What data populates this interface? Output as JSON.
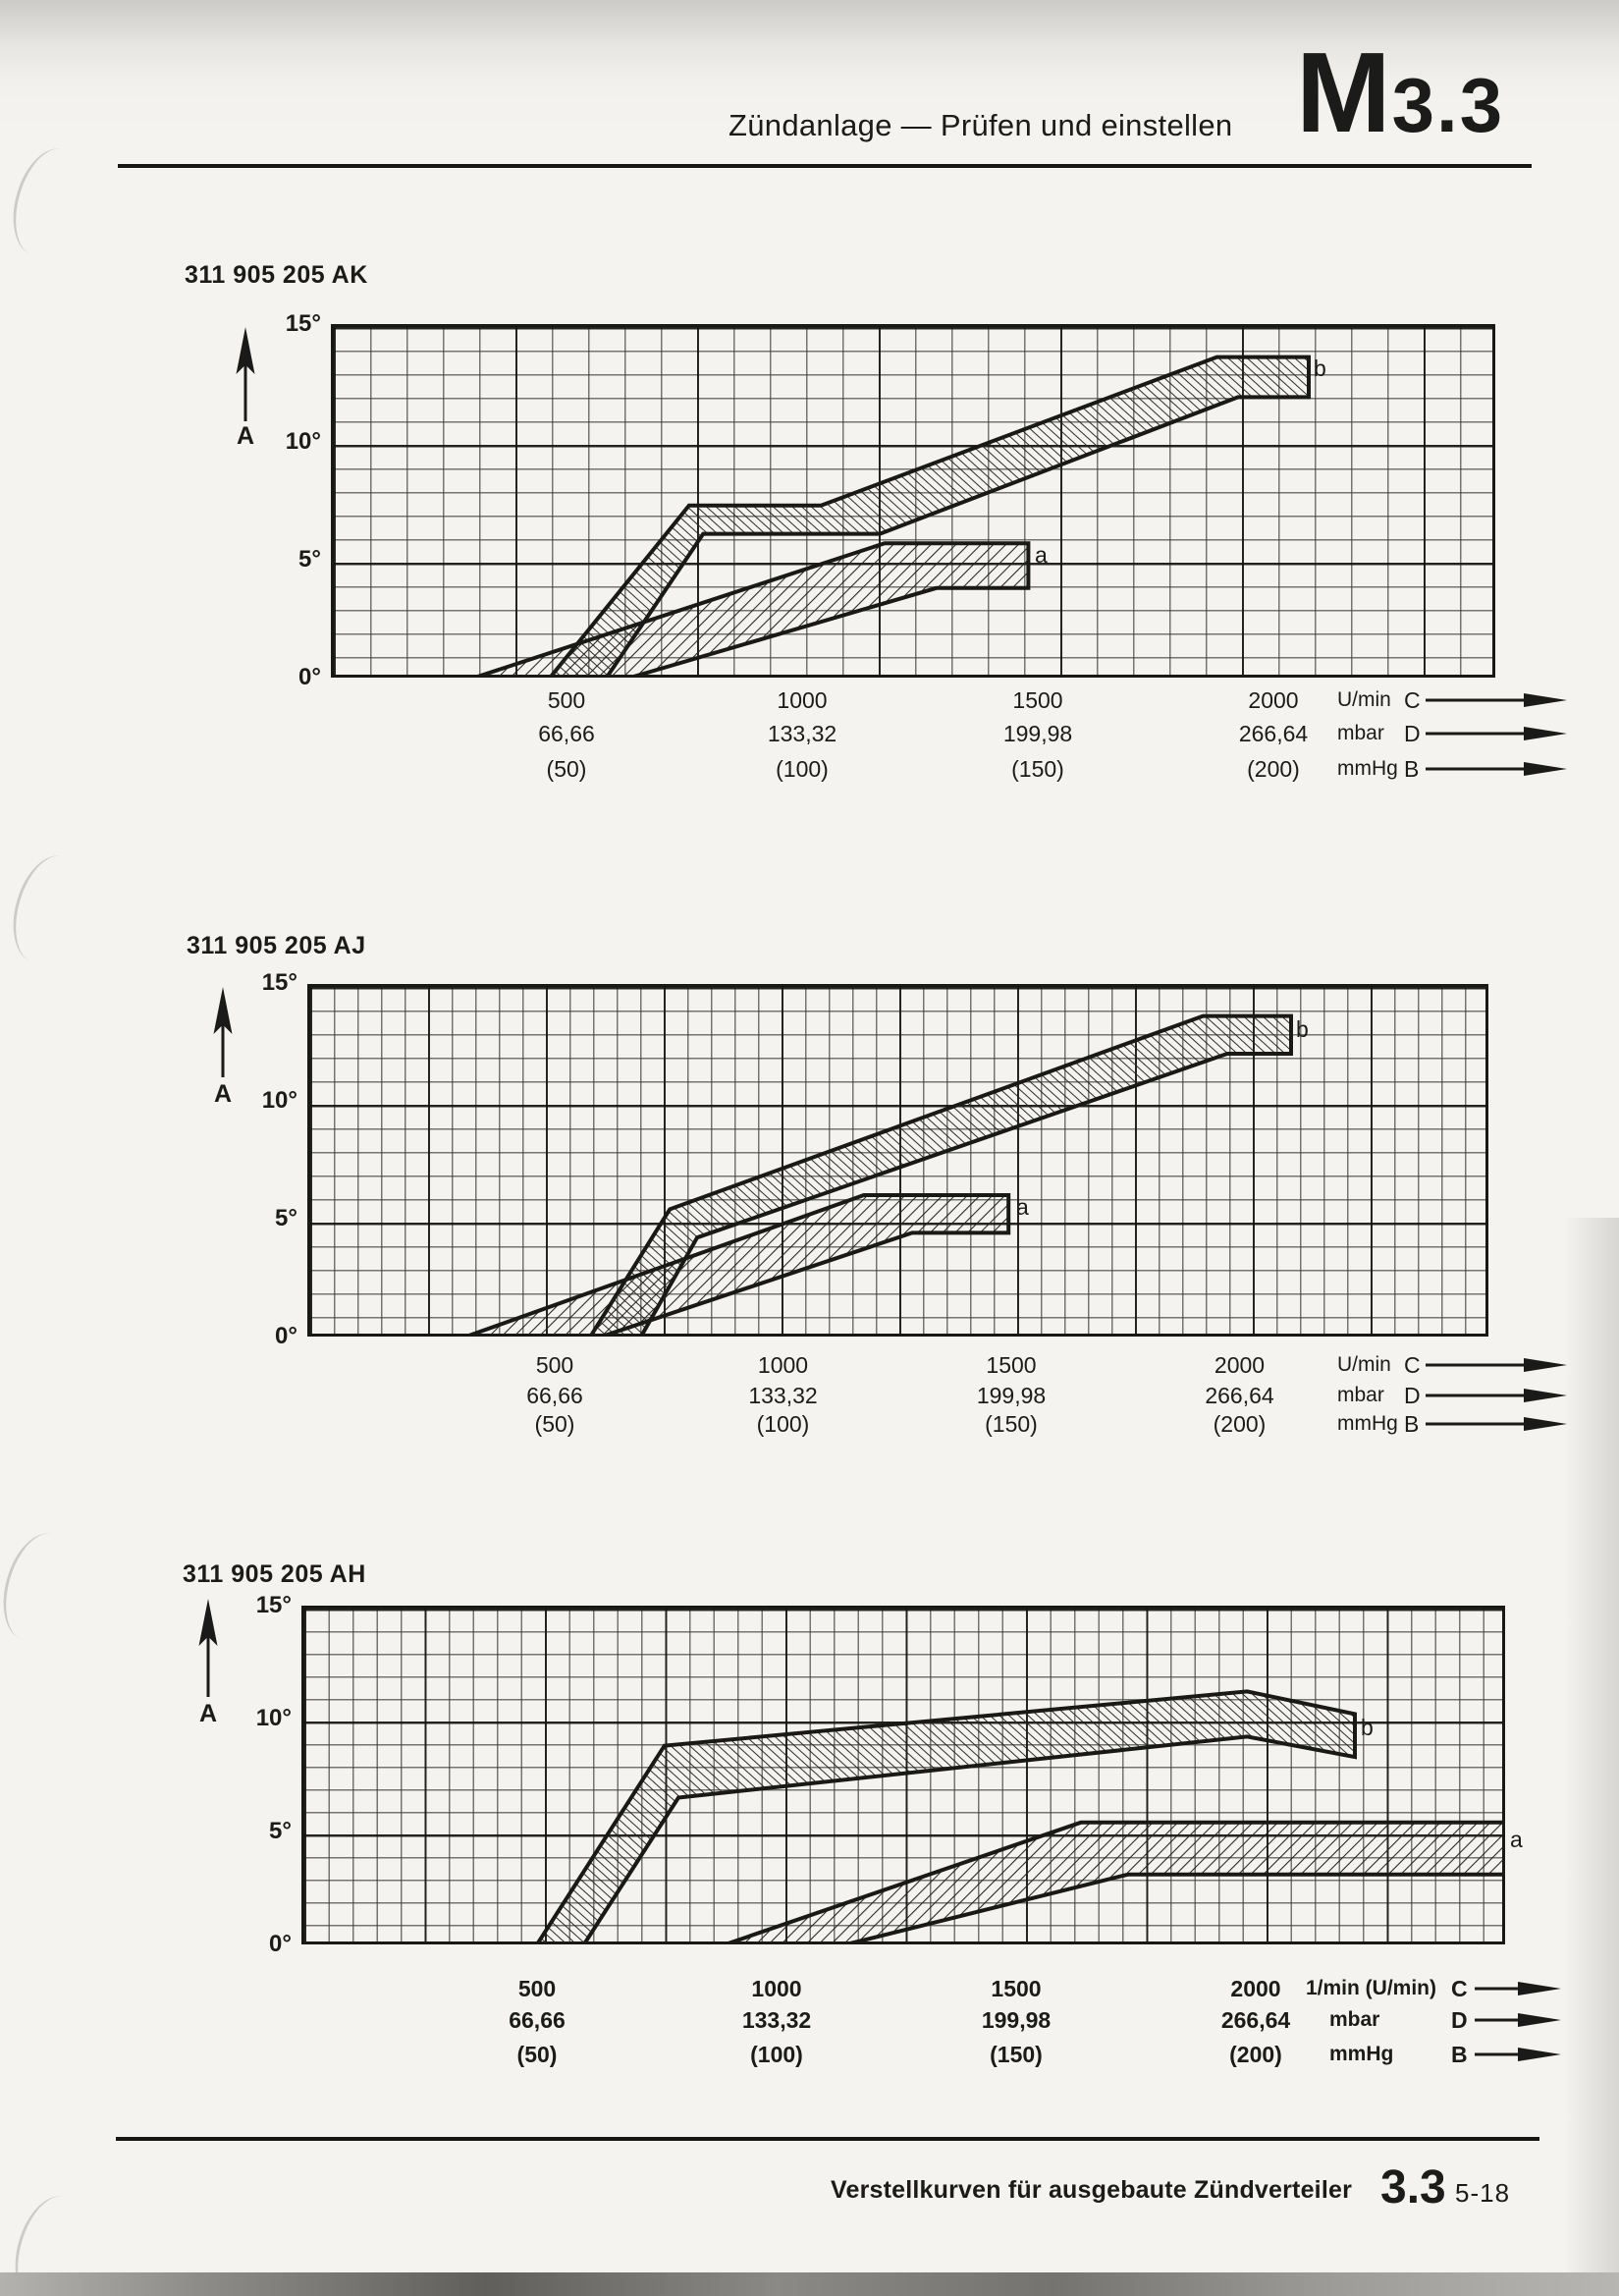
{
  "header": {
    "title": "Zündanlage — Prüfen und einstellen",
    "code_letter": "M",
    "code_number": "3.3"
  },
  "footer": {
    "caption": "Verstellkurven für ausgebaute Zündverteiler",
    "section": "3.3",
    "page": "5-18"
  },
  "charts": [
    {
      "id": "311905205AK",
      "title": "311 905 205 AK",
      "y_axis": {
        "arrow_label": "A",
        "ticks": [
          {
            "deg": 15,
            "label": "15°"
          },
          {
            "deg": 10,
            "label": "10°"
          },
          {
            "deg": 5,
            "label": "5°"
          },
          {
            "deg": 0,
            "label": "0°"
          }
        ]
      },
      "x_axis": {
        "rows": [
          {
            "labels": [
              "500",
              "1000",
              "1500",
              "2000"
            ],
            "unit": "U/min",
            "direction": "C"
          },
          {
            "labels": [
              "66,66",
              "133,32",
              "199,98",
              "266,64"
            ],
            "unit": "mbar",
            "direction": "D"
          },
          {
            "labels": [
              "(50)",
              "(100)",
              "(150)",
              "(200)"
            ],
            "unit": "mmHg",
            "direction": "B"
          }
        ]
      },
      "chart_data": {
        "type": "area",
        "x_unit": "U/min",
        "y_unit": "degrees advance",
        "x_range": [
          0,
          2470
        ],
        "y_range": [
          0,
          15
        ],
        "bands": [
          {
            "label": "b",
            "hatch": "b",
            "upper": [
              [
                465,
                0
              ],
              [
                760,
                7.3
              ],
              [
                1040,
                7.3
              ],
              [
                1880,
                13.6
              ],
              [
                2075,
                13.6
              ]
            ],
            "lower": [
              [
                585,
                0
              ],
              [
                790,
                6.1
              ],
              [
                1165,
                6.1
              ],
              [
                1925,
                11.9
              ],
              [
                2075,
                11.9
              ]
            ]
          },
          {
            "label": "a",
            "hatch": "a",
            "upper": [
              [
                305,
                0
              ],
              [
                1175,
                5.7
              ],
              [
                1480,
                5.7
              ]
            ],
            "lower": [
              [
                635,
                0
              ],
              [
                1285,
                3.8
              ],
              [
                1480,
                3.8
              ]
            ]
          }
        ]
      }
    },
    {
      "id": "311905205AJ",
      "title": "311 905 205 AJ",
      "y_axis": {
        "arrow_label": "A",
        "ticks": [
          {
            "deg": 15,
            "label": "15°"
          },
          {
            "deg": 10,
            "label": "10°"
          },
          {
            "deg": 5,
            "label": "5°"
          },
          {
            "deg": 0,
            "label": "0°"
          }
        ]
      },
      "x_axis": {
        "rows": [
          {
            "labels": [
              "500",
              "1000",
              "1500",
              "2000"
            ],
            "unit": "U/min",
            "direction": "C"
          },
          {
            "labels": [
              "66,66",
              "133,32",
              "199,98",
              "266,64"
            ],
            "unit": "mbar",
            "direction": "D"
          },
          {
            "labels": [
              "(50)",
              "(100)",
              "(150)",
              "(200)"
            ],
            "unit": "mmHg",
            "direction": "B"
          }
        ]
      },
      "chart_data": {
        "type": "area",
        "x_unit": "U/min",
        "y_unit": "degrees advance",
        "x_range": [
          0,
          2550
        ],
        "y_range": [
          0,
          15
        ],
        "bands": [
          {
            "label": "b",
            "hatch": "b",
            "upper": [
              [
                578,
                0
              ],
              [
                752,
                5.4
              ],
              [
                1920,
                13.6
              ],
              [
                2113,
                13.6
              ]
            ],
            "lower": [
              [
                689,
                0
              ],
              [
                812,
                4.2
              ],
              [
                1973,
                12.0
              ],
              [
                2113,
                12.0
              ]
            ]
          },
          {
            "label": "a",
            "hatch": "a",
            "upper": [
              [
                306,
                0
              ],
              [
                1177,
                6.0
              ],
              [
                1494,
                6.0
              ]
            ],
            "lower": [
              [
                603,
                0
              ],
              [
                1283,
                4.4
              ],
              [
                1494,
                4.4
              ]
            ]
          }
        ]
      }
    },
    {
      "id": "311905205AH",
      "title": "311 905 205 AH",
      "y_axis": {
        "arrow_label": "A",
        "ticks": [
          {
            "deg": 15,
            "label": "15°"
          },
          {
            "deg": 10,
            "label": "10°"
          },
          {
            "deg": 5,
            "label": "5°"
          },
          {
            "deg": 0,
            "label": "0°"
          }
        ]
      },
      "x_axis": {
        "rows": [
          {
            "labels": [
              "500",
              "1000",
              "1500",
              "2000"
            ],
            "unit": "1/min (U/min)",
            "direction": "C"
          },
          {
            "labels": [
              "66,66",
              "133,32",
              "199,98",
              "266,64"
            ],
            "unit": "mbar",
            "direction": "D"
          },
          {
            "labels": [
              "(50)",
              "(100)",
              "(150)",
              "(200)"
            ],
            "unit": "mmHg",
            "direction": "B"
          }
        ]
      },
      "chart_data": {
        "type": "area",
        "x_unit": "1/min (U/min)",
        "y_unit": "degrees advance",
        "x_range": [
          0,
          2520
        ],
        "y_range": [
          0,
          15
        ],
        "bands": [
          {
            "label": "b",
            "hatch": "b",
            "upper": [
              [
                500,
                0
              ],
              [
                766,
                8.8
              ],
              [
                1982,
                11.2
              ],
              [
                2207,
                10.2
              ]
            ],
            "lower": [
              [
                598,
                0
              ],
              [
                795,
                6.5
              ],
              [
                1982,
                9.2
              ],
              [
                2207,
                8.3
              ]
            ]
          },
          {
            "label": "a",
            "hatch": "a",
            "upper": [
              [
                893,
                0
              ],
              [
                1635,
                5.4
              ],
              [
                2520,
                5.4
              ]
            ],
            "lower": [
              [
                1145,
                0
              ],
              [
                1734,
                3.1
              ],
              [
                2520,
                3.1
              ]
            ]
          }
        ]
      }
    }
  ]
}
